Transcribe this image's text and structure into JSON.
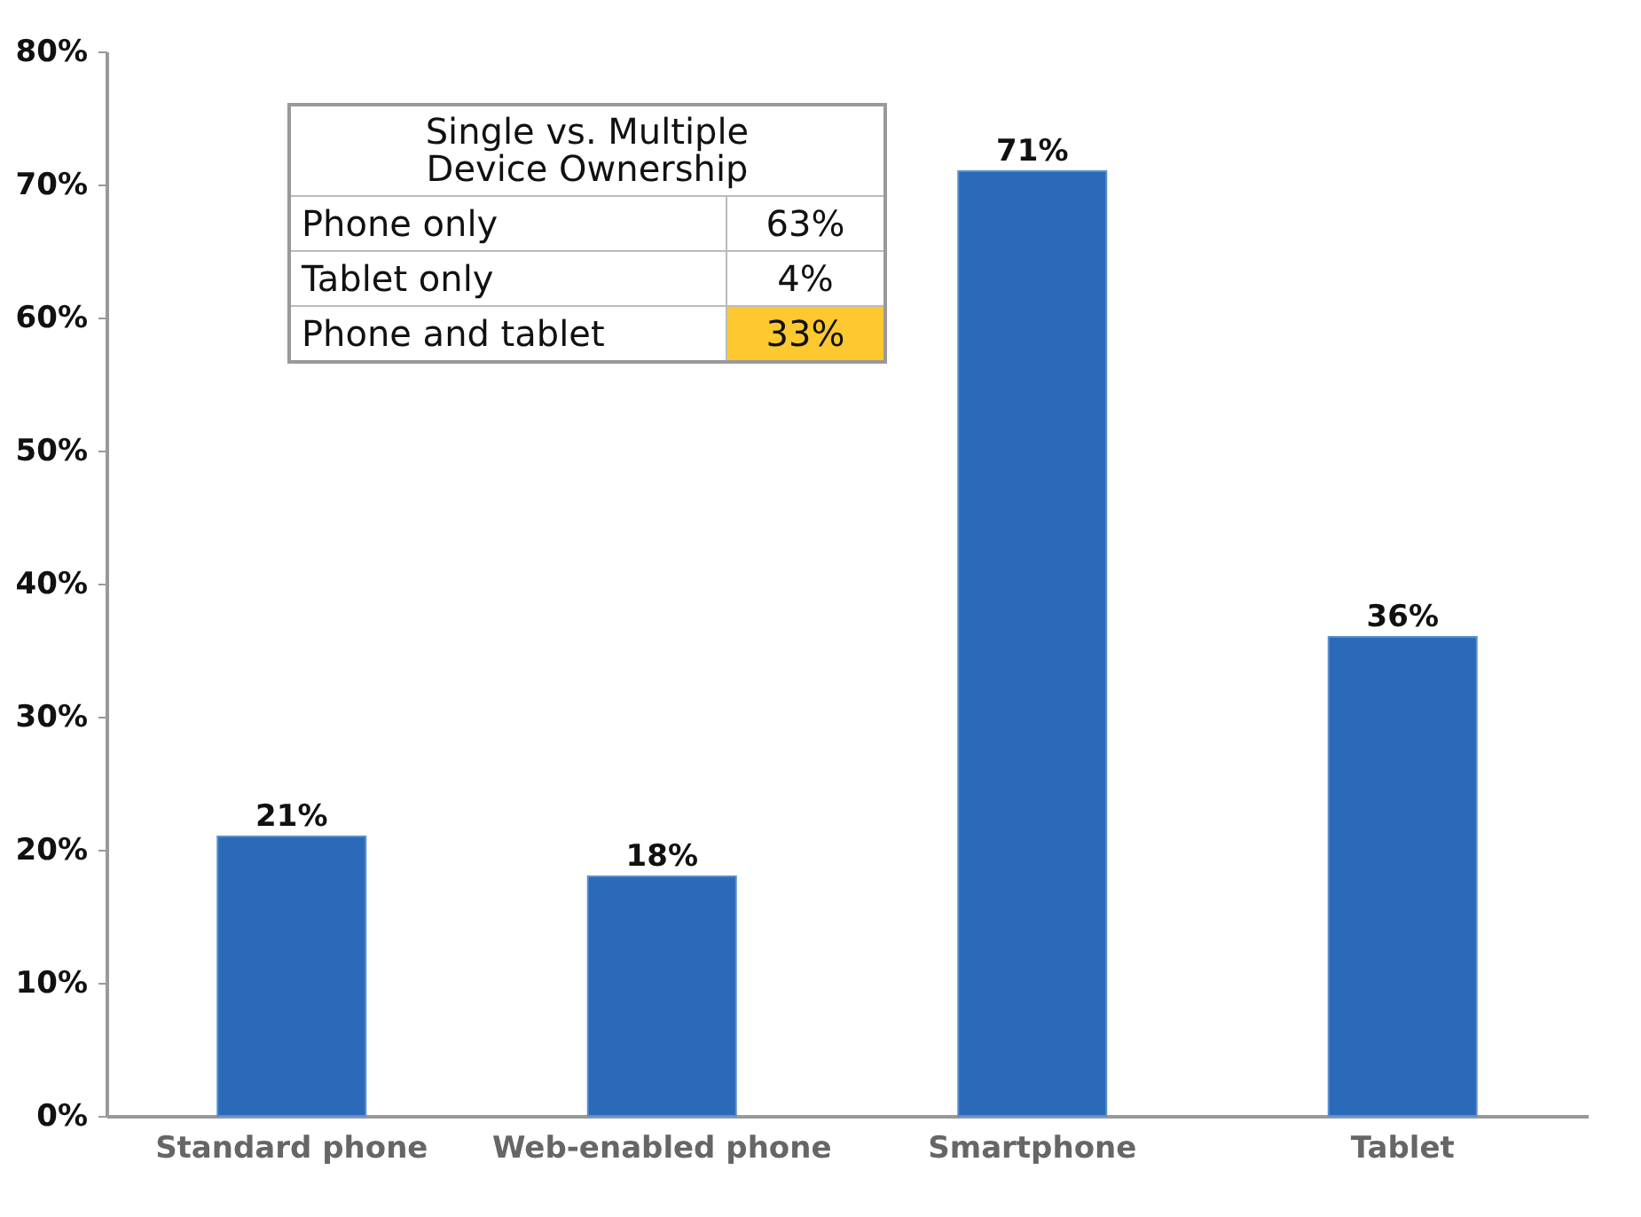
{
  "chart_data": {
    "type": "bar",
    "categories": [
      "Standard phone",
      "Web-enabled phone",
      "Smartphone",
      "Tablet"
    ],
    "values": [
      21,
      18,
      71,
      36
    ],
    "value_labels": [
      "21%",
      "18%",
      "71%",
      "36%"
    ],
    "color": "#2a6ab8",
    "ylim": [
      0,
      80
    ],
    "yticks": [
      {
        "value": 0,
        "label": "0%"
      },
      {
        "value": 10,
        "label": "10%"
      },
      {
        "value": 20,
        "label": "20%"
      },
      {
        "value": 30,
        "label": "30%"
      },
      {
        "value": 40,
        "label": "40%"
      },
      {
        "value": 50,
        "label": "50%"
      },
      {
        "value": 60,
        "label": "60%"
      },
      {
        "value": 70,
        "label": "70%"
      },
      {
        "value": 80,
        "label": "80%"
      }
    ],
    "annotations": [
      "Single vs. Multiple Device Ownership",
      "Phone only",
      "63%",
      "Tablet only",
      "4%",
      "Phone and tablet",
      "33%"
    ]
  }
}
